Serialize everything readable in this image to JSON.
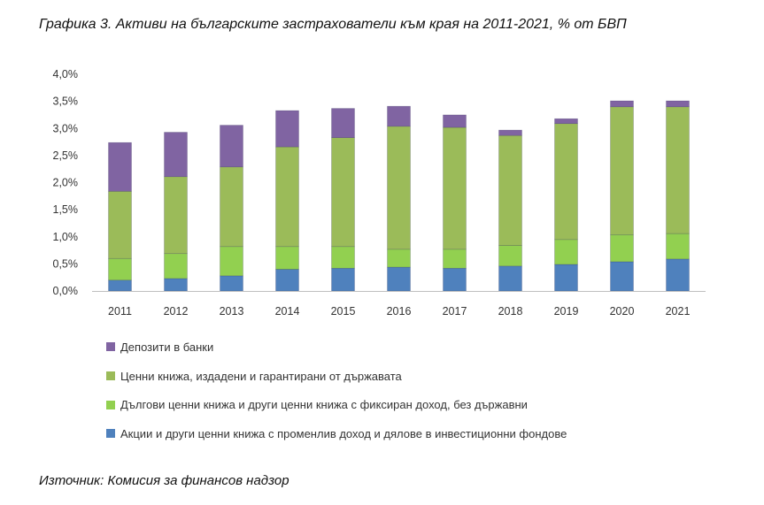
{
  "chart_data": {
    "type": "bar",
    "stacked": true,
    "title": "Графика 3. Активи на българските застрахователи към края на 2011-2021, % от БВП",
    "source": "Източник: Комисия за финансов надзор",
    "categories": [
      "2011",
      "2012",
      "2013",
      "2014",
      "2015",
      "2016",
      "2017",
      "2018",
      "2019",
      "2020",
      "2021"
    ],
    "ylim": [
      0,
      4.0
    ],
    "yticks": [
      "0,0%",
      "0,5%",
      "1,0%",
      "1,5%",
      "2,0%",
      "2,5%",
      "3,0%",
      "3,5%",
      "4,0%"
    ],
    "grid": false,
    "legend_position": "bottom",
    "series": [
      {
        "name": "Акции и други ценни книжа с променлив доход и дялове в инвестиционни фондове",
        "color": "#4f81bd",
        "values": [
          0.2,
          0.23,
          0.28,
          0.4,
          0.42,
          0.44,
          0.42,
          0.46,
          0.49,
          0.54,
          0.59
        ]
      },
      {
        "name": "Дългови ценни книжа и други ценни книжа с фиксиран доход, без държавни",
        "color": "#92d050",
        "values": [
          0.4,
          0.46,
          0.54,
          0.42,
          0.4,
          0.33,
          0.35,
          0.38,
          0.46,
          0.5,
          0.47
        ]
      },
      {
        "name": "Ценни книжа, издадени и гарантирани от държавата",
        "color": "#9bbb59",
        "values": [
          1.24,
          1.42,
          1.47,
          1.84,
          2.01,
          2.27,
          2.25,
          2.03,
          2.14,
          2.36,
          2.34
        ]
      },
      {
        "name": "Депозити в банки",
        "color": "#8064a2",
        "values": [
          0.9,
          0.82,
          0.77,
          0.67,
          0.54,
          0.37,
          0.23,
          0.1,
          0.09,
          0.11,
          0.11
        ]
      }
    ]
  }
}
